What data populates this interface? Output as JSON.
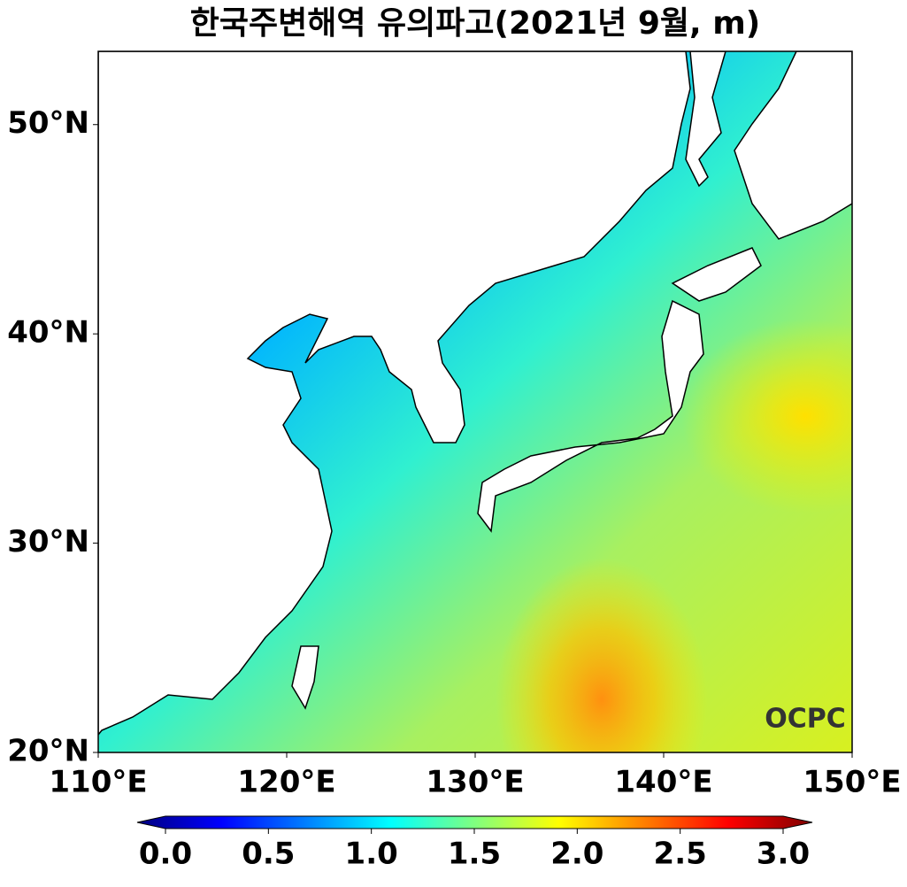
{
  "chart_data": {
    "type": "map",
    "title": "한국주변해역 유의파고(2021년 9월, m)",
    "xlim": [
      110,
      150
    ],
    "xticks": [
      {
        "value": 110,
        "label": "110°E"
      },
      {
        "value": 120,
        "label": "120°E"
      },
      {
        "value": 130,
        "label": "130°E"
      },
      {
        "value": 140,
        "label": "140°E"
      },
      {
        "value": 150,
        "label": "150°E"
      }
    ],
    "ylim": [
      20,
      53.5
    ],
    "yticks": [
      {
        "value": 20,
        "label": "20°N"
      },
      {
        "value": 30,
        "label": "30°N"
      },
      {
        "value": 40,
        "label": "40°N"
      },
      {
        "value": 50,
        "label": "50°N"
      }
    ],
    "colorbar": {
      "lim": [
        0,
        3
      ],
      "ticks": [
        {
          "value": 0,
          "label": "0.0"
        },
        {
          "value": 0.5,
          "label": "0.5"
        },
        {
          "value": 1,
          "label": "1.0"
        },
        {
          "value": 1.5,
          "label": "1.5"
        },
        {
          "value": 2,
          "label": "2.0"
        },
        {
          "value": 2.5,
          "label": "2.5"
        },
        {
          "value": 3,
          "label": "3.0"
        }
      ]
    },
    "logo": "OCPC"
  }
}
